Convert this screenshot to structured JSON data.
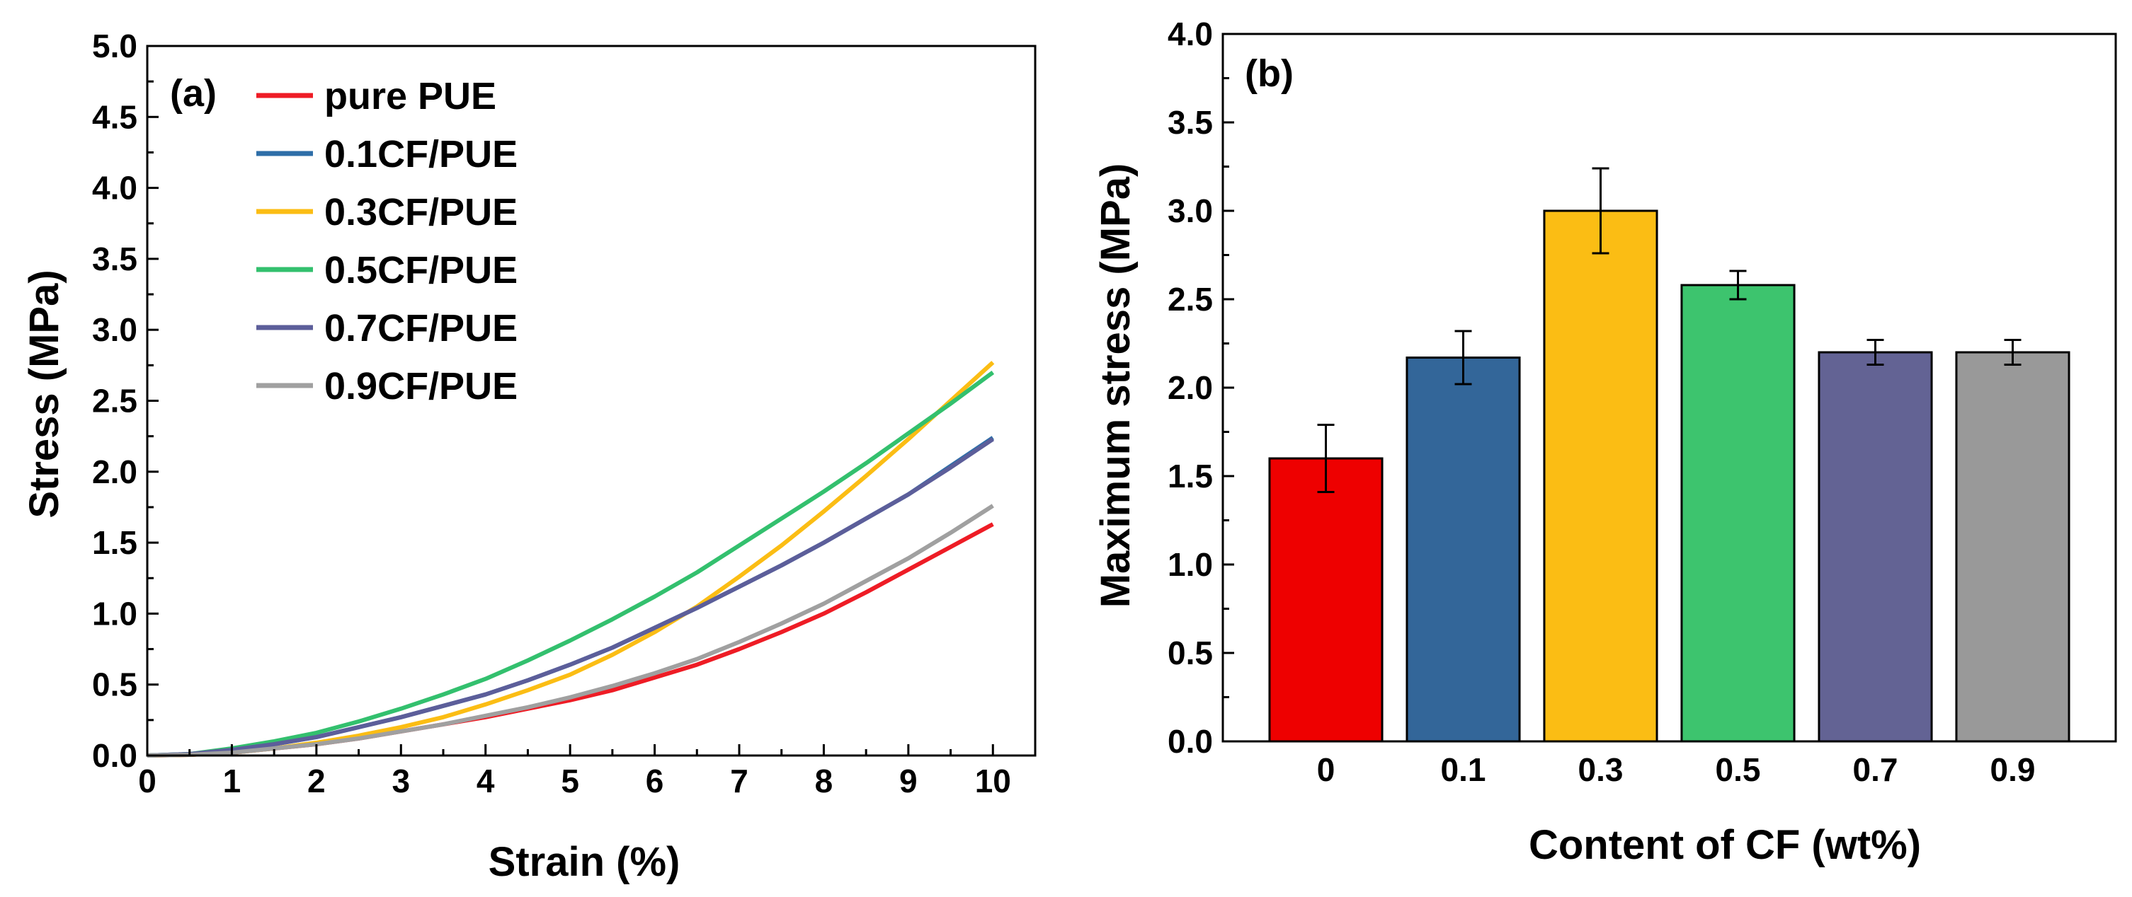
{
  "chart_data": [
    {
      "type": "line",
      "panel_label": "(a)",
      "xlabel": "Strain (%)",
      "ylabel": "Stress (MPa)",
      "xlim": [
        0,
        10.5
      ],
      "ylim": [
        0,
        5.0
      ],
      "x_ticks": [
        "0",
        "1",
        "2",
        "3",
        "4",
        "5",
        "6",
        "7",
        "8",
        "9",
        "10"
      ],
      "y_ticks": [
        "0.0",
        "0.5",
        "1.0",
        "1.5",
        "2.0",
        "2.5",
        "3.0",
        "3.5",
        "4.0",
        "4.5",
        "5.0"
      ],
      "legend_position": "top-left",
      "x": [
        0,
        0.5,
        1,
        1.5,
        2,
        2.5,
        3,
        3.5,
        4,
        4.5,
        5,
        5.5,
        6,
        6.5,
        7,
        7.5,
        8,
        8.5,
        9,
        9.5,
        10
      ],
      "series": [
        {
          "name": "pure PUE",
          "color": "#ee1c25",
          "values": [
            0,
            0.005,
            0.02,
            0.05,
            0.08,
            0.12,
            0.17,
            0.22,
            0.27,
            0.33,
            0.39,
            0.46,
            0.55,
            0.64,
            0.75,
            0.87,
            1.0,
            1.15,
            1.31,
            1.47,
            1.63
          ]
        },
        {
          "name": "0.1CF/PUE",
          "color": "#2e6ea8",
          "values": [
            0,
            0.01,
            0.04,
            0.08,
            0.13,
            0.2,
            0.27,
            0.35,
            0.43,
            0.53,
            0.64,
            0.76,
            0.9,
            1.04,
            1.19,
            1.34,
            1.5,
            1.67,
            1.84,
            2.04,
            2.24
          ]
        },
        {
          "name": "0.3CF/PUE",
          "color": "#fbbd14",
          "values": [
            0,
            0.005,
            0.02,
            0.05,
            0.09,
            0.14,
            0.2,
            0.27,
            0.36,
            0.46,
            0.57,
            0.71,
            0.87,
            1.05,
            1.26,
            1.48,
            1.72,
            1.97,
            2.23,
            2.5,
            2.77
          ]
        },
        {
          "name": "0.5CF/PUE",
          "color": "#33c06e",
          "values": [
            0,
            0.01,
            0.05,
            0.1,
            0.16,
            0.24,
            0.33,
            0.43,
            0.54,
            0.67,
            0.81,
            0.96,
            1.12,
            1.29,
            1.48,
            1.67,
            1.86,
            2.06,
            2.27,
            2.48,
            2.7
          ]
        },
        {
          "name": "0.7CF/PUE",
          "color": "#5c5e9a",
          "values": [
            0,
            0.01,
            0.04,
            0.08,
            0.13,
            0.2,
            0.27,
            0.35,
            0.43,
            0.53,
            0.64,
            0.76,
            0.9,
            1.04,
            1.19,
            1.34,
            1.5,
            1.67,
            1.84,
            2.03,
            2.23
          ]
        },
        {
          "name": "0.9CF/PUE",
          "color": "#a0a0a0",
          "values": [
            0,
            0.005,
            0.02,
            0.05,
            0.08,
            0.12,
            0.17,
            0.22,
            0.28,
            0.34,
            0.41,
            0.49,
            0.58,
            0.68,
            0.8,
            0.93,
            1.07,
            1.23,
            1.39,
            1.57,
            1.76
          ]
        }
      ]
    },
    {
      "type": "bar",
      "panel_label": "(b)",
      "xlabel": "Content of CF (wt%)",
      "ylabel": "Maximum stress (MPa)",
      "ylim": [
        0,
        4.0
      ],
      "y_ticks": [
        "0.0",
        "0.5",
        "1.0",
        "1.5",
        "2.0",
        "2.5",
        "3.0",
        "3.5",
        "4.0"
      ],
      "categories": [
        "0",
        "0.1",
        "0.3",
        "0.5",
        "0.7",
        "0.9"
      ],
      "values": [
        1.6,
        2.17,
        3.0,
        2.58,
        2.2,
        2.2
      ],
      "errors": [
        0.19,
        0.15,
        0.24,
        0.08,
        0.07,
        0.07
      ],
      "colors": [
        "#ee0000",
        "#336699",
        "#fbbd14",
        "#3dc46e",
        "#636394",
        "#999999"
      ]
    }
  ]
}
